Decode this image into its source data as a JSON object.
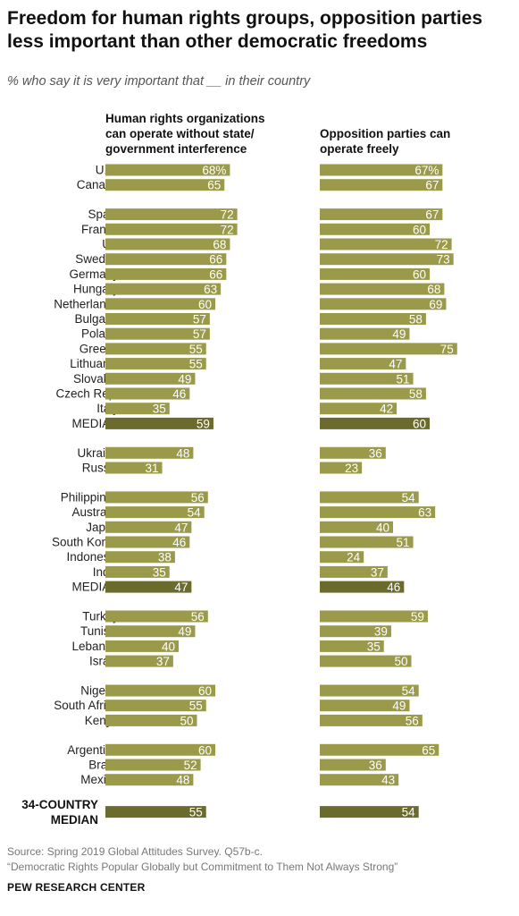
{
  "title": "Freedom for human rights groups, opposition parties less important than other democratic freedoms",
  "subtitle": "% who say it is very important that __ in their country",
  "source_line1": "Source: Spring 2019 Global Attitudes Survey. Q57b-c.",
  "source_line2": "“Democratic Rights Popular Globally but Commitment to Them Not Always Strong”",
  "logo": "PEW RESEARCH CENTER",
  "colors": {
    "bar": "#9a9a4a",
    "median_bar": "#6b6b2e",
    "bar_text": "#ffffff"
  },
  "chart_data": {
    "type": "bar",
    "orientation": "horizontal",
    "series": [
      {
        "name": "Human rights organizations can operate without state/ government interference"
      },
      {
        "name": "Opposition parties can operate freely"
      }
    ],
    "xlim": [
      0,
      100
    ],
    "groups": [
      {
        "rows": [
          {
            "label": "U.S.",
            "a": 68,
            "b": 67,
            "a_text": "68%",
            "b_text": "67%"
          },
          {
            "label": "Canada",
            "a": 65,
            "b": 67
          }
        ]
      },
      {
        "rows": [
          {
            "label": "Spain",
            "a": 72,
            "b": 67
          },
          {
            "label": "France",
            "a": 72,
            "b": 60
          },
          {
            "label": "UK",
            "a": 68,
            "b": 72
          },
          {
            "label": "Sweden",
            "a": 66,
            "b": 73
          },
          {
            "label": "Germany",
            "a": 66,
            "b": 60
          },
          {
            "label": "Hungary",
            "a": 63,
            "b": 68
          },
          {
            "label": "Netherlands",
            "a": 60,
            "b": 69
          },
          {
            "label": "Bulgaria",
            "a": 57,
            "b": 58
          },
          {
            "label": "Poland",
            "a": 57,
            "b": 49
          },
          {
            "label": "Greece",
            "a": 55,
            "b": 75
          },
          {
            "label": "Lithuania",
            "a": 55,
            "b": 47
          },
          {
            "label": "Slovakia",
            "a": 49,
            "b": 51
          },
          {
            "label": "Czech Rep.",
            "a": 46,
            "b": 58
          },
          {
            "label": "Italy",
            "a": 35,
            "b": 42
          },
          {
            "label": "MEDIAN",
            "a": 59,
            "b": 60,
            "median": true
          }
        ]
      },
      {
        "rows": [
          {
            "label": "Ukraine",
            "a": 48,
            "b": 36
          },
          {
            "label": "Russia",
            "a": 31,
            "b": 23
          }
        ]
      },
      {
        "rows": [
          {
            "label": "Philippines",
            "a": 56,
            "b": 54
          },
          {
            "label": "Australia",
            "a": 54,
            "b": 63
          },
          {
            "label": "Japan",
            "a": 47,
            "b": 40
          },
          {
            "label": "South Korea",
            "a": 46,
            "b": 51
          },
          {
            "label": "Indonesia",
            "a": 38,
            "b": 24
          },
          {
            "label": "India",
            "a": 35,
            "b": 37
          },
          {
            "label": "MEDIAN",
            "a": 47,
            "b": 46,
            "median": true
          }
        ]
      },
      {
        "rows": [
          {
            "label": "Turkey",
            "a": 56,
            "b": 59
          },
          {
            "label": "Tunisia",
            "a": 49,
            "b": 39
          },
          {
            "label": "Lebanon",
            "a": 40,
            "b": 35
          },
          {
            "label": "Israel",
            "a": 37,
            "b": 50
          }
        ]
      },
      {
        "rows": [
          {
            "label": "Nigeria",
            "a": 60,
            "b": 54
          },
          {
            "label": "South Africa",
            "a": 55,
            "b": 49
          },
          {
            "label": "Kenya",
            "a": 50,
            "b": 56
          }
        ]
      },
      {
        "rows": [
          {
            "label": "Argentina",
            "a": 60,
            "b": 65
          },
          {
            "label": "Brazil",
            "a": 52,
            "b": 36
          },
          {
            "label": "Mexico",
            "a": 48,
            "b": 43
          }
        ]
      },
      {
        "rows": [
          {
            "label": "34-COUNTRY MEDIAN",
            "label_lines": [
              "34-COUNTRY",
              "MEDIAN"
            ],
            "a": 55,
            "b": 54,
            "median": true,
            "overall": true
          }
        ]
      }
    ]
  }
}
